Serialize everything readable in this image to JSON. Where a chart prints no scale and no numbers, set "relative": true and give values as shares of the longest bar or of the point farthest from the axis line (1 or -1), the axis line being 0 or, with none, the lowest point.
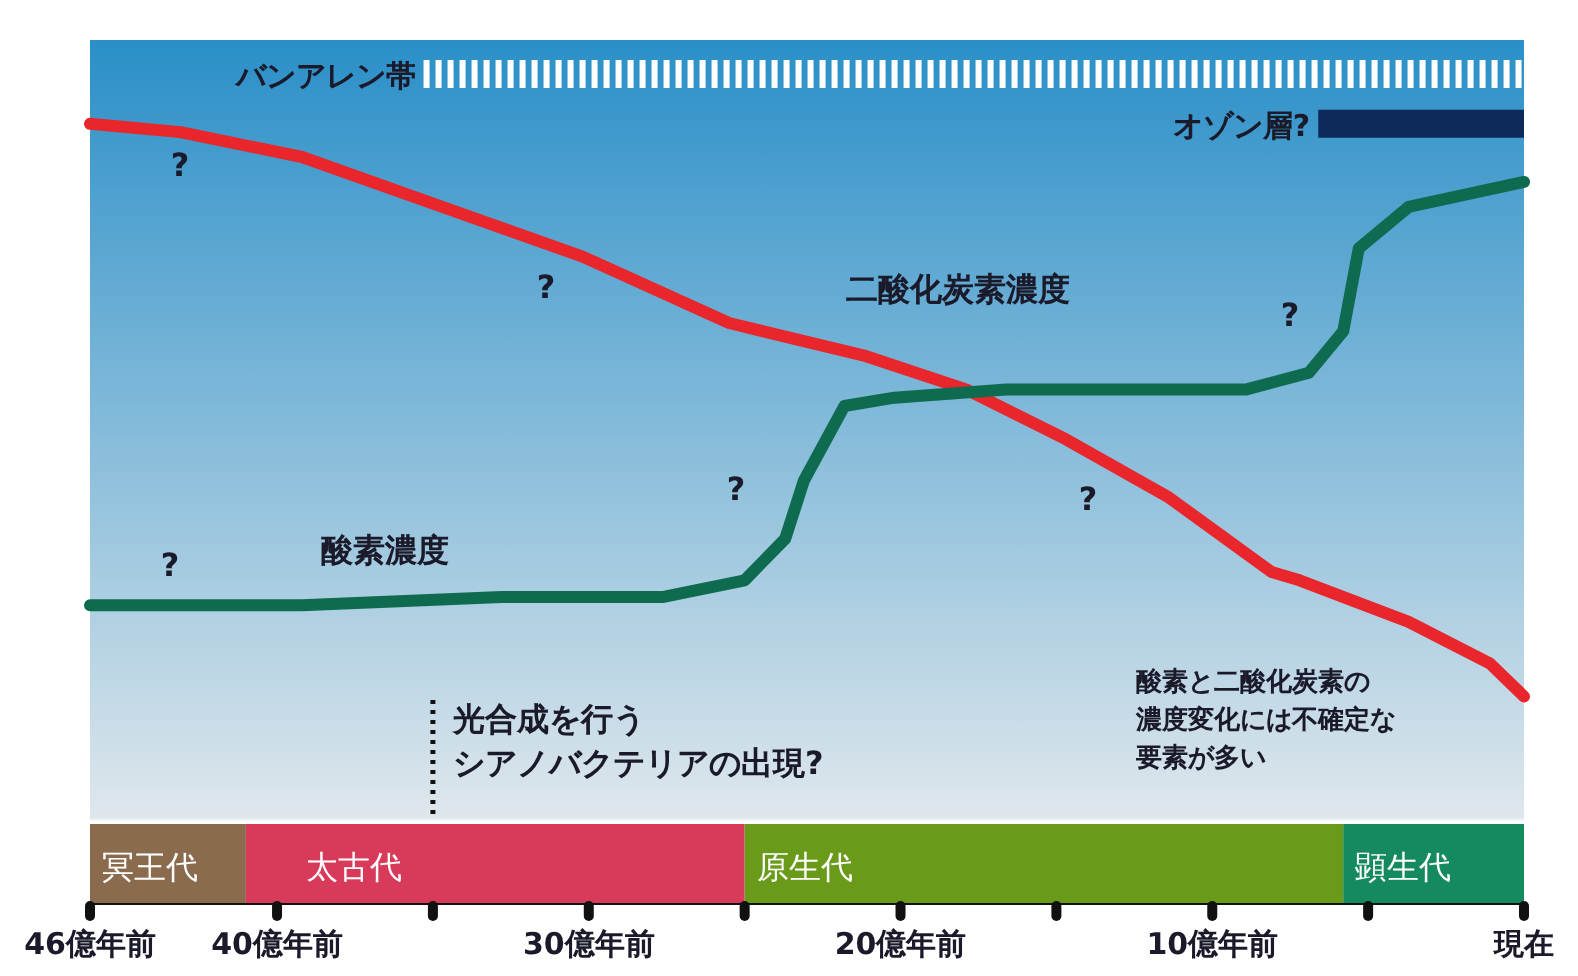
{
  "chart_data": {
    "type": "line",
    "relative": true,
    "xlim": [
      -46,
      0
    ],
    "xticks": [
      {
        "value": -46,
        "label": "46億年前"
      },
      {
        "value": -40,
        "label": "40億年前"
      },
      {
        "value": -35,
        "label": null
      },
      {
        "value": -30,
        "label": "30億年前"
      },
      {
        "value": -25,
        "label": null
      },
      {
        "value": -20,
        "label": "20億年前"
      },
      {
        "value": -15,
        "label": null
      },
      {
        "value": -10,
        "label": "10億年前"
      },
      {
        "value": -5,
        "label": null
      },
      {
        "value": 0,
        "label": "現在"
      }
    ],
    "series": [
      {
        "name": "二酸化炭素濃度",
        "color": "#e8262b",
        "x": [
          -46,
          -43.1,
          -39.2,
          -34.7,
          -30.2,
          -25.5,
          -24.4,
          -21.1,
          -17.9,
          -14.7,
          -11.4,
          -8.1,
          -7.2,
          -3.7,
          -1.1,
          0
        ],
        "values": [
          0.94,
          0.93,
          0.9,
          0.84,
          0.78,
          0.7,
          0.69,
          0.66,
          0.62,
          0.56,
          0.49,
          0.4,
          0.39,
          0.34,
          0.29,
          0.25
        ]
      },
      {
        "name": "酸素濃度",
        "color": "#0e6b50",
        "x": [
          -46,
          -39.2,
          -32.8,
          -27.6,
          -25.0,
          -23.7,
          -23.1,
          -21.8,
          -20.2,
          -16.6,
          -12.7,
          -8.9,
          -6.9,
          -5.8,
          -5.3,
          -3.7,
          0
        ],
        "values": [
          0.36,
          0.36,
          0.37,
          0.37,
          0.39,
          0.44,
          0.51,
          0.6,
          0.61,
          0.62,
          0.62,
          0.62,
          0.64,
          0.69,
          0.79,
          0.84,
          0.87
        ]
      },
      {
        "name": "バンアレン帯",
        "color": "#ffffff",
        "x": [
          -35.3,
          0
        ],
        "values": [
          1,
          1
        ],
        "line_style": "dashed"
      },
      {
        "name": "オゾン層?",
        "color": "#0d2a5a",
        "x": [
          -6.6,
          0
        ],
        "values": [
          0.94,
          0.94
        ],
        "line_style": "solid"
      }
    ],
    "bands": [
      {
        "axis": "x",
        "from": -46,
        "to": -41,
        "label": "冥王代",
        "color": "#8a6b4e"
      },
      {
        "axis": "x",
        "from": -41,
        "to": -25,
        "label": "太古代",
        "color": "#d83a5a"
      },
      {
        "axis": "x",
        "from": -25,
        "to": -5.8,
        "label": "原生代",
        "color": "#6a9a1a"
      },
      {
        "axis": "x",
        "from": -5.8,
        "to": 0,
        "label": "顕生代",
        "color": "#148a5e"
      }
    ],
    "ref_lines": [
      {
        "axis": "x",
        "value": -35,
        "label": "光合成を行うシアノバクテリアの出現?",
        "line_style": "dotted",
        "color": "#111111"
      }
    ],
    "annotations": [
      "?",
      "?",
      "?",
      "?",
      "?",
      "?",
      "酸素と二酸化炭素の濃度変化には不確定な要素が多い"
    ]
  }
}
